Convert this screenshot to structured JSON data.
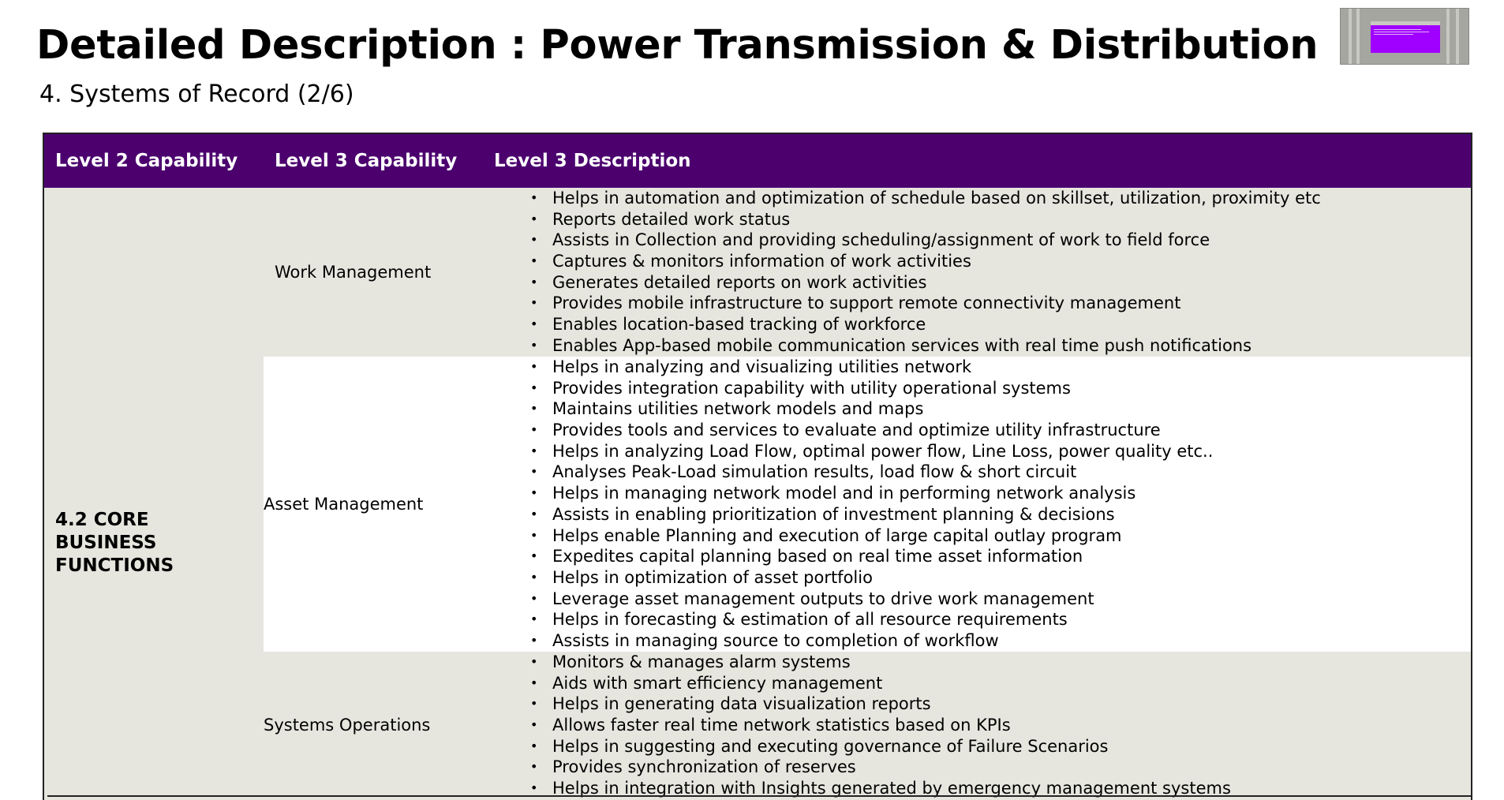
{
  "title": "Detailed Description : Power Transmission & Distribution",
  "subtitle": "4. Systems of Record (2/6)",
  "colors": {
    "header_bg": "#4b006e",
    "row_shaded": "#e6e6df",
    "thumbnail_accent": "#a000ff"
  },
  "table": {
    "headers": [
      "Level 2 Capability",
      "Level 3 Capability",
      "Level 3 Description"
    ],
    "level2": "4.2 CORE BUSINESS FUNCTIONS",
    "rows": [
      {
        "capability": "Work Management",
        "descriptions": [
          "Helps in automation and optimization of schedule based on skillset, utilization, proximity etc",
          "Reports detailed work status",
          "Assists in Collection and providing scheduling/assignment of work to field force",
          "Captures & monitors information of work activities",
          "Generates detailed reports on work activities",
          "Provides mobile infrastructure to support remote connectivity management",
          "Enables location-based tracking of workforce",
          "Enables App-based mobile communication services with real time push notifications"
        ]
      },
      {
        "capability": "Asset Management",
        "descriptions": [
          "Helps in analyzing and visualizing utilities network",
          "Provides integration capability with utility operational systems",
          "Maintains utilities network models and maps",
          "Provides tools and services to evaluate and optimize utility infrastructure",
          "Helps in analyzing Load Flow, optimal power flow, Line Loss, power quality etc..",
          "Analyses Peak-Load simulation results, load flow & short circuit",
          "Helps in managing network model and in performing network analysis",
          "Assists in enabling prioritization of investment planning & decisions",
          "Helps enable Planning and execution of large capital outlay program",
          "Expedites capital planning based on real time asset information",
          "Helps in optimization of asset portfolio",
          "Leverage asset management outputs to drive work management",
          "Helps in forecasting & estimation of all resource requirements",
          "Assists in managing source to completion of workflow"
        ]
      },
      {
        "capability": "Systems Operations",
        "descriptions": [
          "Monitors & manages alarm systems",
          "Aids with smart efficiency management",
          "Helps in generating data visualization reports",
          "Allows faster real time network statistics based on KPIs",
          "Helps in suggesting and executing governance of Failure Scenarios",
          "Provides synchronization of reserves",
          "Helps in integration with Insights generated by emergency management systems"
        ]
      }
    ]
  }
}
